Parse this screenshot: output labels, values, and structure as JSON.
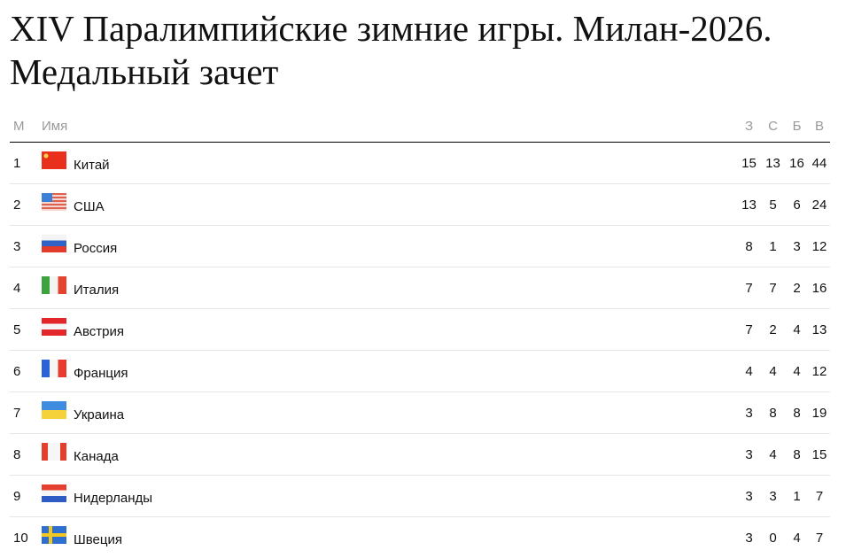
{
  "title": "XIV Паралимпийские зимние игры. Милан-2026. Медальный зачет",
  "headers": {
    "pos": "М",
    "name": "Имя",
    "gold": "З",
    "silver": "С",
    "bronze": "Б",
    "total": "В"
  },
  "rows": [
    {
      "pos": "1",
      "country": "Китай",
      "flag": "china-flag",
      "gold": "15",
      "silver": "13",
      "bronze": "16",
      "total": "44"
    },
    {
      "pos": "2",
      "country": "США",
      "flag": "usa-flag",
      "gold": "13",
      "silver": "5",
      "bronze": "6",
      "total": "24"
    },
    {
      "pos": "3",
      "country": "Россия",
      "flag": "russia-flag",
      "gold": "8",
      "silver": "1",
      "bronze": "3",
      "total": "12"
    },
    {
      "pos": "4",
      "country": "Италия",
      "flag": "italy-flag",
      "gold": "7",
      "silver": "7",
      "bronze": "2",
      "total": "16"
    },
    {
      "pos": "5",
      "country": "Австрия",
      "flag": "austria-flag",
      "gold": "7",
      "silver": "2",
      "bronze": "4",
      "total": "13"
    },
    {
      "pos": "6",
      "country": "Франция",
      "flag": "france-flag",
      "gold": "4",
      "silver": "4",
      "bronze": "4",
      "total": "12"
    },
    {
      "pos": "7",
      "country": "Украина",
      "flag": "ukraine-flag",
      "gold": "3",
      "silver": "8",
      "bronze": "8",
      "total": "19"
    },
    {
      "pos": "8",
      "country": "Канада",
      "flag": "canada-flag",
      "gold": "3",
      "silver": "4",
      "bronze": "8",
      "total": "15"
    },
    {
      "pos": "9",
      "country": "Нидерланды",
      "flag": "netherlands-flag",
      "gold": "3",
      "silver": "3",
      "bronze": "1",
      "total": "7"
    },
    {
      "pos": "10",
      "country": "Швеция",
      "flag": "sweden-flag",
      "gold": "3",
      "silver": "0",
      "bronze": "4",
      "total": "7"
    }
  ]
}
